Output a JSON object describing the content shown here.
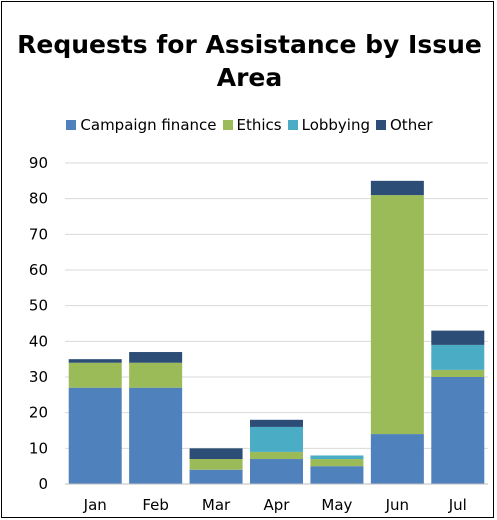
{
  "chart_data": {
    "type": "bar",
    "stacked": true,
    "title": "Requests for Assistance by Issue Area",
    "categories": [
      "Jan",
      "Feb",
      "Mar",
      "Apr",
      "May",
      "Jun",
      "Jul"
    ],
    "series": [
      {
        "name": "Campaign finance",
        "color": "#4f81bd",
        "values": [
          27,
          27,
          4,
          7,
          5,
          14,
          30
        ]
      },
      {
        "name": "Ethics",
        "color": "#9bbb59",
        "values": [
          7,
          7,
          3,
          2,
          2,
          67,
          2
        ]
      },
      {
        "name": "Lobbying",
        "color": "#4bacc6",
        "values": [
          0,
          0,
          0,
          7,
          1,
          0,
          7
        ]
      },
      {
        "name": "Other",
        "color": "#2c4d75",
        "values": [
          1,
          3,
          3,
          2,
          0,
          4,
          4
        ]
      }
    ],
    "xlabel": "",
    "ylabel": "",
    "ylim": [
      0,
      90
    ],
    "yticks": [
      0,
      10,
      20,
      30,
      40,
      50,
      60,
      70,
      80,
      90
    ],
    "grid": true,
    "legend_position": "top"
  }
}
